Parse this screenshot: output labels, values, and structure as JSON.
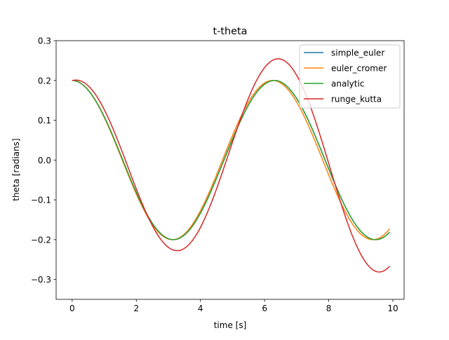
{
  "chart_data": {
    "type": "line",
    "title": "t-theta",
    "xlabel": "time [s]",
    "ylabel": "theta [radians]",
    "xlim": [
      -0.5,
      10.35
    ],
    "ylim": [
      -0.35,
      0.3
    ],
    "x_range": [
      0,
      9.9
    ],
    "xticks": [
      {
        "value": 0,
        "label": "0"
      },
      {
        "value": 2,
        "label": "2"
      },
      {
        "value": 4,
        "label": "4"
      },
      {
        "value": 6,
        "label": "6"
      },
      {
        "value": 8,
        "label": "8"
      },
      {
        "value": 10,
        "label": "10"
      }
    ],
    "yticks": [
      {
        "value": -0.3,
        "label": "−0.3"
      },
      {
        "value": -0.2,
        "label": "−0.2"
      },
      {
        "value": -0.1,
        "label": "−0.1"
      },
      {
        "value": 0.0,
        "label": "0.0"
      },
      {
        "value": 0.1,
        "label": "0.1"
      },
      {
        "value": 0.2,
        "label": "0.2"
      },
      {
        "value": 0.3,
        "label": "0.3"
      }
    ],
    "grid": false,
    "legend_position": "top-right",
    "series": [
      {
        "name": "simple_euler",
        "color": "#1f77b4",
        "amplitude": 0.2,
        "period": 6.31,
        "growth": 0.0,
        "lag": 0.0
      },
      {
        "name": "euler_cromer",
        "color": "#ff7f0e",
        "amplitude": 0.2,
        "period": 6.25,
        "growth": 0.0,
        "lag": 0.0
      },
      {
        "name": "analytic",
        "color": "#2ca02c",
        "amplitude": 0.2,
        "period": 6.31,
        "growth": 0.0,
        "lag": 0.0
      },
      {
        "name": "runge_kutta",
        "color": "#d62728",
        "amplitude": 0.2,
        "period": 6.31,
        "growth": 0.0425,
        "lag": 0.08
      }
    ]
  }
}
